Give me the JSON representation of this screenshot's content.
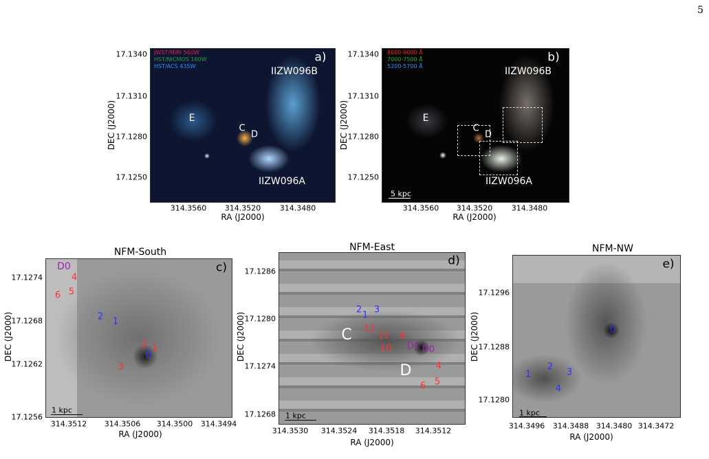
{
  "page_number": "5",
  "panels": [
    {
      "label": "a)",
      "legend": [
        "JWST/MIRI 560W",
        "HST/NICMOS 160W",
        "HST/ACS 435W"
      ],
      "annotations": [
        "IIZW096B",
        "E",
        "C",
        "D",
        "IIZW096A"
      ],
      "yticks": [
        "17.1340",
        "17.1310",
        "17.1280",
        "17.1250"
      ],
      "xticks": [
        "314.3560",
        "314.3520",
        "314.3480"
      ],
      "xlabel": "RA (J2000)",
      "ylabel": "DEC (J2000)"
    },
    {
      "label": "b)",
      "legend": [
        "8600-9000 Å",
        "7000-7500 Å",
        "5200-5700 Å"
      ],
      "annotations": [
        "IIZW096B",
        "E",
        "C",
        "D",
        "IIZW096A",
        "5 kpc"
      ],
      "yticks": [
        "17.1340",
        "17.1310",
        "17.1280",
        "17.1250"
      ],
      "xticks": [
        "314.3560",
        "314.3520",
        "314.3480"
      ],
      "xlabel": "RA (J2000)",
      "ylabel": "DEC (J2000)"
    },
    {
      "title": "NFM-South",
      "label": "c)",
      "annotations": [
        "D0",
        "4",
        "5",
        "6",
        "2",
        "1",
        "2",
        "1",
        "0",
        "3",
        "1 kpc"
      ],
      "yticks": [
        "17.1274",
        "17.1268",
        "17.1262",
        "17.1256"
      ],
      "xticks": [
        "314.3512",
        "314.3506",
        "314.3500",
        "314.3494"
      ],
      "xlabel": "RA (J2000)",
      "ylabel": "DEC (J2000)"
    },
    {
      "title": "NFM-East",
      "label": "d)",
      "annotations": [
        "2",
        "1",
        "3",
        "C",
        "12",
        "11",
        "10",
        "9",
        "D1",
        "D0",
        "4",
        "D",
        "5",
        "6",
        "1 kpc"
      ],
      "yticks": [
        "17.1286",
        "17.1280",
        "17.1274",
        "17.1268"
      ],
      "xticks": [
        "314.3530",
        "314.3524",
        "314.3518",
        "314.3512"
      ],
      "xlabel": "RA (J2000)",
      "ylabel": "DEC (J2000)"
    },
    {
      "title": "NFM-NW",
      "label": "e)",
      "annotations": [
        "0",
        "1",
        "2",
        "3",
        "4",
        "1 kpc"
      ],
      "yticks": [
        "17.1296",
        "17.1288",
        "17.1280"
      ],
      "xticks": [
        "314.3496",
        "314.3488",
        "314.3480",
        "314.3472"
      ],
      "xlabel": "RA (J2000)",
      "ylabel": "DEC (J2000)"
    }
  ]
}
